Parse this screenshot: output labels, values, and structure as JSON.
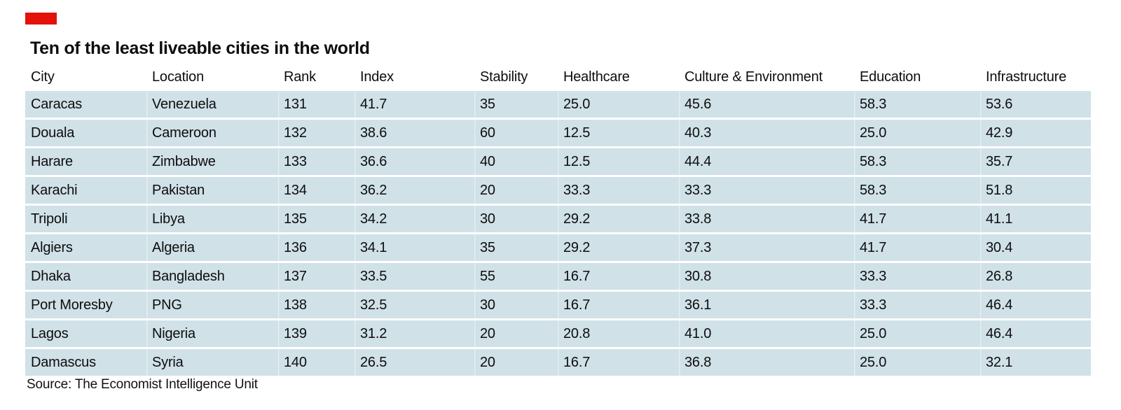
{
  "title": "Ten of the least liveable cities in the world",
  "source": "Source: The Economist Intelligence Unit",
  "colors": {
    "accent_red": "#e3120b",
    "row_background": "#d0e1e8",
    "text": "#0d0d0d",
    "page_background": "#ffffff"
  },
  "chart_data": {
    "type": "table",
    "title": "Ten of the least liveable cities in the world",
    "columns": [
      "City",
      "Location",
      "Rank",
      "Index",
      "Stability",
      "Healthcare",
      "Culture & Environment",
      "Education",
      "Infrastructure"
    ],
    "rows": [
      [
        "Caracas",
        "Venezuela",
        "131",
        "41.7",
        "35",
        "25.0",
        "45.6",
        "58.3",
        "53.6"
      ],
      [
        "Douala",
        "Cameroon",
        "132",
        "38.6",
        "60",
        "12.5",
        "40.3",
        "25.0",
        "42.9"
      ],
      [
        "Harare",
        "Zimbabwe",
        "133",
        "36.6",
        "40",
        "12.5",
        "44.4",
        "58.3",
        "35.7"
      ],
      [
        "Karachi",
        "Pakistan",
        "134",
        "36.2",
        "20",
        "33.3",
        "33.3",
        "58.3",
        "51.8"
      ],
      [
        "Tripoli",
        "Libya",
        "135",
        "34.2",
        "30",
        "29.2",
        "33.8",
        "41.7",
        "41.1"
      ],
      [
        "Algiers",
        "Algeria",
        "136",
        "34.1",
        "35",
        "29.2",
        "37.3",
        "41.7",
        "30.4"
      ],
      [
        "Dhaka",
        "Bangladesh",
        "137",
        "33.5",
        "55",
        "16.7",
        "30.8",
        "33.3",
        "26.8"
      ],
      [
        "Port Moresby",
        "PNG",
        "138",
        "32.5",
        "30",
        "16.7",
        "36.1",
        "33.3",
        "46.4"
      ],
      [
        "Lagos",
        "Nigeria",
        "139",
        "31.2",
        "20",
        "20.8",
        "41.0",
        "25.0",
        "46.4"
      ],
      [
        "Damascus",
        "Syria",
        "140",
        "26.5",
        "20",
        "16.7",
        "36.8",
        "25.0",
        "32.1"
      ]
    ],
    "source": "Source: The Economist Intelligence Unit",
    "layout": {
      "header_background": "none",
      "row_striping": "all rows same light blue with white gaps",
      "grid": "off"
    }
  }
}
